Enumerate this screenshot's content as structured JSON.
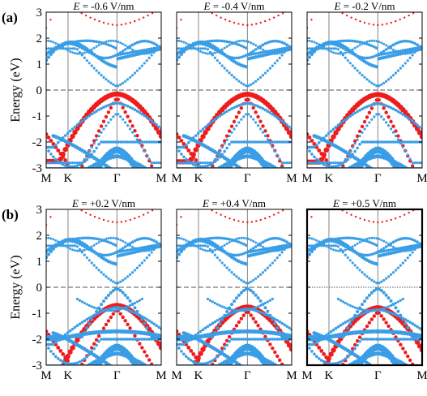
{
  "colors": {
    "blue": "#3a9ee6",
    "red": "#ee1c1c",
    "axis": "#000000",
    "vline": "#777777"
  },
  "row_labels": [
    "(a)",
    "(b)"
  ],
  "ylabel": "Energy (eV)",
  "chart_data": {
    "type": "scatter",
    "ylim": [
      -3,
      3
    ],
    "yticks": [
      3,
      2,
      1,
      0,
      -1,
      -2,
      -3
    ],
    "xticks": [
      "M",
      "K",
      "Γ",
      "M"
    ],
    "fermi_level": 0,
    "panels": [
      {
        "row": 0,
        "title_prefix": "E",
        "title_value": " = -0.6 V/nm",
        "field": -0.6,
        "highlighted": false
      },
      {
        "row": 0,
        "title_prefix": "E",
        "title_value": " = -0.4 V/nm",
        "field": -0.4,
        "highlighted": false
      },
      {
        "row": 0,
        "title_prefix": "E",
        "title_value": " = -0.2 V/nm",
        "field": -0.2,
        "highlighted": false
      },
      {
        "row": 1,
        "title_prefix": "E",
        "title_value": " = +0.2 V/nm",
        "field": 0.2,
        "highlighted": false
      },
      {
        "row": 1,
        "title_prefix": "E",
        "title_value": " = +0.4 V/nm",
        "field": 0.4,
        "highlighted": false
      },
      {
        "row": 1,
        "title_prefix": "E",
        "title_value": " = +0.5 V/nm",
        "field": 0.5,
        "highlighted": true
      }
    ]
  }
}
